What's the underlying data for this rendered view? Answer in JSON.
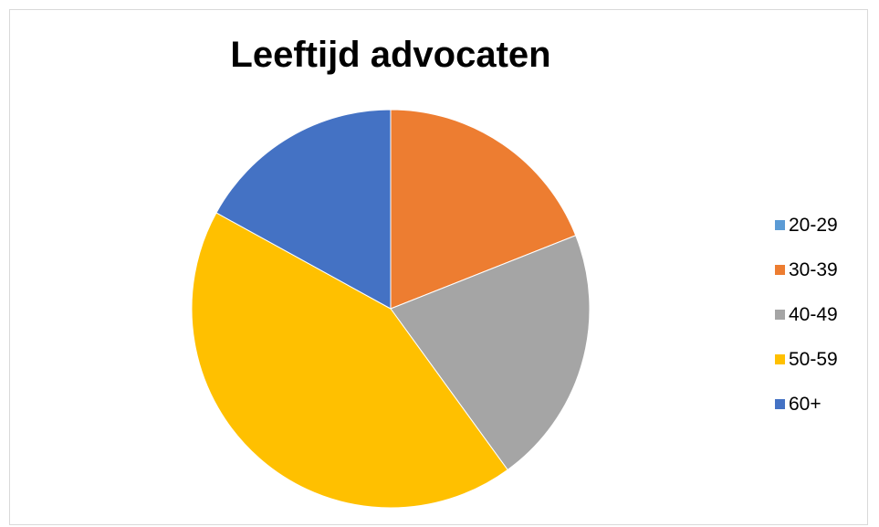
{
  "chart_data": {
    "type": "pie",
    "title": "Leeftijd advocaten",
    "categories": [
      "20-29",
      "30-39",
      "40-49",
      "50-59",
      "60+"
    ],
    "values": [
      0,
      19,
      21,
      43,
      17
    ],
    "colors": [
      "#5B9BD5",
      "#ED7D31",
      "#A5A5A5",
      "#FFC000",
      "#4472C4"
    ],
    "legend_position": "right",
    "start_angle_deg": 0,
    "direction": "clockwise"
  }
}
